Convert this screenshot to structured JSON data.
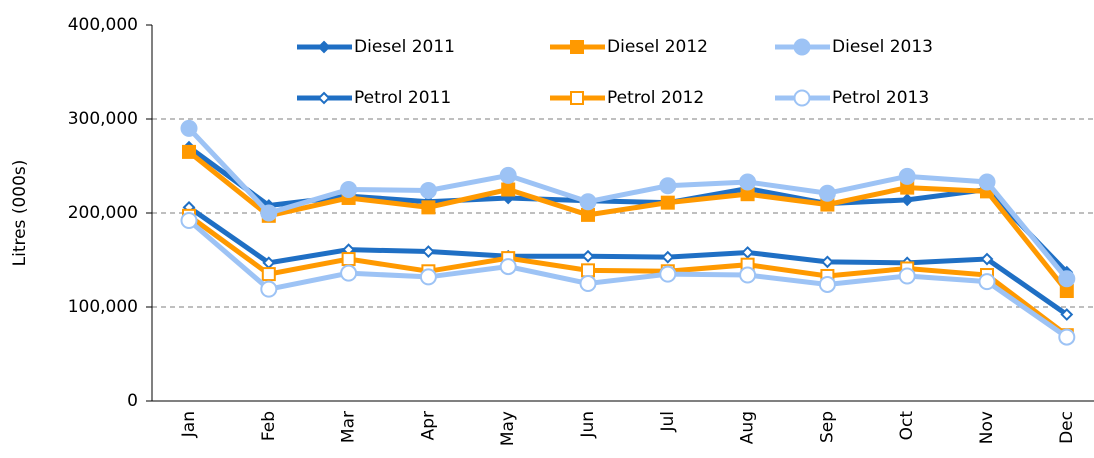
{
  "chart_data": {
    "type": "line",
    "y_label": "Litres (000s)",
    "categories": [
      "Jan",
      "Feb",
      "Mar",
      "Apr",
      "May",
      "Jun",
      "Jul",
      "Aug",
      "Sep",
      "Oct",
      "Nov",
      "Dec"
    ],
    "ylim": [
      0,
      400000
    ],
    "yticks": [
      0,
      {
        "value": 100000,
        "label": "100,000"
      },
      {
        "value": 200000,
        "label": "200,000"
      },
      {
        "value": 300000,
        "label": "300,000"
      },
      {
        "value": 400000,
        "label": "400,000"
      }
    ],
    "grid": true,
    "series": [
      {
        "name": "Diesel 2011",
        "color": "#1f6fc4",
        "marker": "diamond",
        "filled": true,
        "values": [
          270000,
          208000,
          218000,
          212000,
          216000,
          213000,
          211000,
          226000,
          210000,
          214000,
          225000,
          137000
        ]
      },
      {
        "name": "Diesel 2012",
        "color": "#ff9900",
        "marker": "square",
        "filled": true,
        "values": [
          265000,
          197000,
          216000,
          206000,
          225000,
          198000,
          211000,
          220000,
          209000,
          227000,
          223000,
          117000
        ]
      },
      {
        "name": "Diesel 2013",
        "color": "#9dc3f5",
        "marker": "circle",
        "filled": true,
        "values": [
          290000,
          200000,
          225000,
          224000,
          240000,
          212000,
          229000,
          233000,
          221000,
          239000,
          233000,
          130000
        ]
      },
      {
        "name": "Petrol 2011",
        "color": "#1f6fc4",
        "marker": "diamond",
        "filled": false,
        "values": [
          206000,
          147000,
          161000,
          159000,
          154000,
          154000,
          153000,
          158000,
          148000,
          147000,
          151000,
          92000
        ]
      },
      {
        "name": "Petrol 2012",
        "color": "#ff9900",
        "marker": "square",
        "filled": false,
        "values": [
          197000,
          135000,
          151000,
          138000,
          152000,
          139000,
          138000,
          145000,
          133000,
          141000,
          134000,
          70000
        ]
      },
      {
        "name": "Petrol 2013",
        "color": "#9dc3f5",
        "marker": "circle",
        "filled": false,
        "values": [
          192000,
          119000,
          136000,
          132000,
          143000,
          125000,
          135000,
          134000,
          124000,
          133000,
          127000,
          68000
        ]
      }
    ]
  }
}
